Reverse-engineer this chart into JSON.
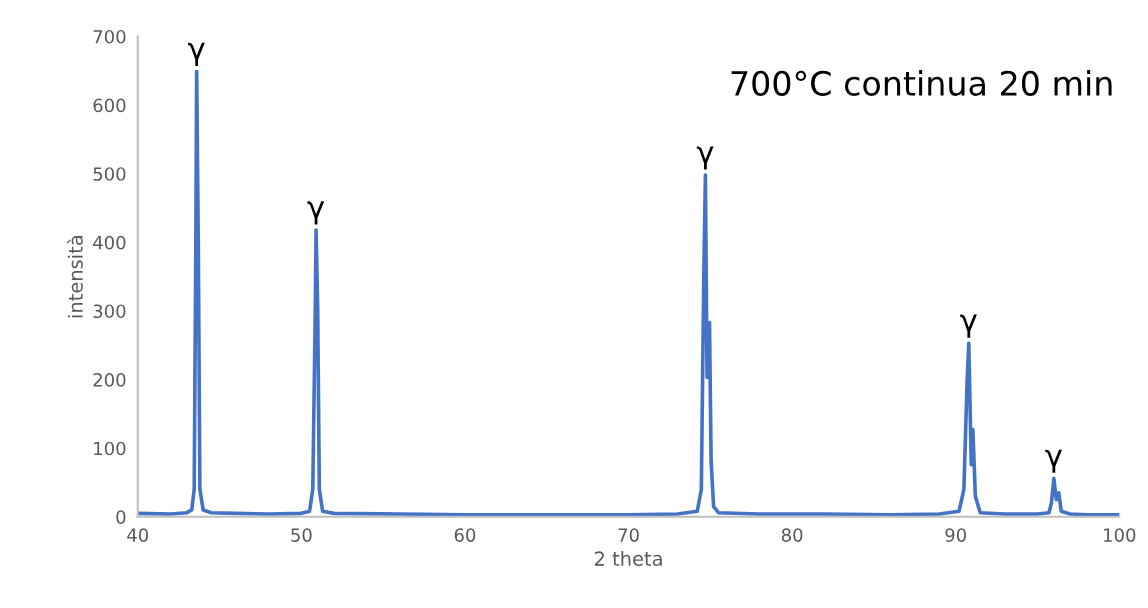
{
  "chart_data": {
    "type": "line",
    "xlabel": "2 theta",
    "ylabel": "intensità",
    "xlim": [
      40,
      100
    ],
    "xticks": [
      40,
      50,
      60,
      70,
      80,
      90,
      100
    ],
    "ylim": [
      0,
      700
    ],
    "yticks": [
      0,
      100,
      200,
      300,
      400,
      500,
      600,
      700
    ],
    "grid": false,
    "legend": false,
    "marker": "none",
    "line_style": "solid",
    "series": [
      {
        "color": "#4472c4",
        "x": [
          40,
          42,
          43,
          43.3,
          43.45,
          43.55,
          43.6,
          43.7,
          43.8,
          44,
          44.5,
          46,
          48,
          50,
          50.5,
          50.7,
          50.85,
          50.9,
          51.0,
          51.1,
          51.3,
          52,
          56,
          60,
          65,
          70,
          73,
          74.2,
          74.45,
          74.6,
          74.7,
          74.8,
          74.95,
          75.05,
          75.2,
          75.5,
          78,
          82,
          86,
          89,
          90.2,
          90.5,
          90.7,
          90.8,
          90.95,
          91.05,
          91.2,
          91.5,
          93,
          95,
          95.7,
          95.85,
          96.0,
          96.15,
          96.3,
          96.45,
          97,
          98,
          100
        ],
        "values": [
          5,
          4,
          6,
          10,
          40,
          400,
          649,
          400,
          40,
          10,
          6,
          5,
          4,
          5,
          8,
          40,
          300,
          418,
          300,
          40,
          8,
          5,
          4,
          3,
          3,
          3,
          4,
          8,
          40,
          350,
          498,
          203,
          283,
          80,
          15,
          6,
          4,
          4,
          3,
          4,
          8,
          40,
          200,
          253,
          76,
          127,
          30,
          6,
          4,
          4,
          6,
          20,
          56,
          25,
          35,
          8,
          4,
          3,
          3
        ]
      }
    ],
    "annotations": [
      {
        "text": "γ",
        "x": 43.6,
        "y": 649
      },
      {
        "text": "γ",
        "x": 50.9,
        "y": 418
      },
      {
        "text": "γ",
        "x": 74.7,
        "y": 498
      },
      {
        "text": "γ",
        "x": 90.8,
        "y": 253
      },
      {
        "text": "γ",
        "x": 96.0,
        "y": 56
      },
      "700°C continua 20 min"
    ]
  }
}
